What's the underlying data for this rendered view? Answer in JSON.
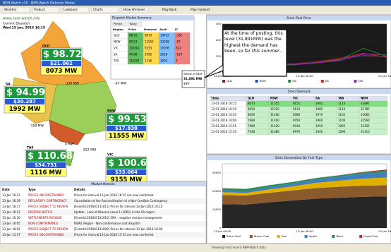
{
  "window": {
    "title": "NEM-Watch v10 - NEM-Watch Platinum Model",
    "menu": [
      "Weather",
      "Product",
      "Lookback",
      "Charts",
      "Show Windows"
    ],
    "buttons": [
      "Play Back",
      "Play Forward"
    ]
  },
  "map": {
    "logo": "www.nem-watch.info",
    "dispatch_label": "Current Dispatch",
    "timestamp": "Wed 13 Jan, 2016 16:15",
    "regions": [
      {
        "name": "QLD",
        "price": "$ 98.72",
        "fcas": "$21.062",
        "demand": "8073 MW"
      },
      {
        "name": "SA",
        "price": "$ 94.99",
        "fcas": "$30.287",
        "demand": "1992 MW"
      },
      {
        "name": "NSW",
        "price": "$ 99.53",
        "fcas": "$17.838",
        "demand": "11555 MW"
      },
      {
        "name": "TAS",
        "price": "$ 110.68",
        "fcas": "$34.731",
        "demand": "1116 MW"
      },
      {
        "name": "VIC",
        "price": "$ 100.64",
        "fcas": "$33.064",
        "demand": "9155 MW"
      }
    ],
    "flows": [
      "-336 MW",
      "-67 MW",
      "-159 MW",
      "822 MW",
      "0 MW"
    ]
  },
  "summary": {
    "title": "Dispatch Market Summary",
    "tabs": [
      "Period",
      "Today"
    ],
    "headers": [
      "Region",
      "Price",
      "Demand",
      "Avail",
      "IC"
    ],
    "rows": [
      [
        "QLD",
        "98.72",
        "8073",
        "10412",
        "-336"
      ],
      [
        "NSW",
        "99.53",
        "11555",
        "13208",
        "-67"
      ],
      [
        "VIC",
        "100.64",
        "9155",
        "10036",
        "822"
      ],
      [
        "SA",
        "94.99",
        "1992",
        "2618",
        "-159"
      ],
      [
        "TAS",
        "110.68",
        "1116",
        "1602",
        "0"
      ]
    ]
  },
  "callout": {
    "text": "At the time of posting, this level (31,891MW) was the highest the demand has been,",
    "emphasis": "so far this summer..."
  },
  "nem": {
    "label": "Whole of NEM",
    "demand": "31,891 MW",
    "price": "$99"
  },
  "price_chart": {
    "type": "line",
    "title": "5min Pool Price",
    "xticks": [
      "13-Jan 00:00",
      "13-Jan 08:00",
      "13-Jan 16:15"
    ],
    "ylim": [
      0,
      300
    ],
    "yticks": [
      0,
      100,
      200,
      300
    ],
    "series": [
      {
        "name": "QLD",
        "color": "#8b1a1a",
        "values": [
          45,
          50,
          60,
          55,
          70,
          90,
          110,
          98.72
        ]
      },
      {
        "name": "NSW",
        "color": "#2050c0",
        "values": [
          40,
          45,
          55,
          52,
          65,
          85,
          105,
          99.53
        ]
      },
      {
        "name": "VIC",
        "color": "#1f8f3a",
        "values": [
          35,
          40,
          50,
          48,
          60,
          80,
          150,
          100.64
        ]
      },
      {
        "name": "SA",
        "color": "#e02020",
        "values": [
          30,
          38,
          45,
          50,
          62,
          85,
          120,
          94.99
        ]
      },
      {
        "name": "TAS",
        "color": "#9c27b0",
        "values": [
          42,
          45,
          48,
          50,
          60,
          75,
          115,
          110.68
        ]
      }
    ]
  },
  "demand_table": {
    "title": "5min Demand",
    "headers": [
      "Time",
      "QLD",
      "NSW",
      "VIC",
      "SA",
      "TAS",
      "NEM"
    ],
    "rows": [
      [
        "13-01-2016 16:15",
        "8073",
        "11555",
        "9155",
        "1992",
        "1116",
        "31891"
      ],
      [
        "13-01-2016 16:10",
        "8050",
        "11520",
        "9120",
        "1985",
        "1110",
        "31785"
      ],
      [
        "13-01-2016 16:05",
        "8020",
        "11490",
        "9080",
        "1970",
        "1105",
        "31665"
      ],
      [
        "13-01-2016 16:00",
        "7990",
        "11460",
        "9050",
        "1960",
        "1100",
        "31560"
      ],
      [
        "13-01-2016 15:55",
        "7960",
        "11420",
        "9010",
        "1950",
        "1095",
        "31435"
      ],
      [
        "13-01-2016 15:50",
        "7930",
        "11380",
        "8970",
        "1940",
        "1090",
        "31310"
      ]
    ]
  },
  "gen_chart": {
    "type": "stacked_area",
    "title": "5min Generation By Fuel Type",
    "xticks": [
      "13-Jan 00:00",
      "13-Jan 08:00",
      "13-Jan 16:15"
    ],
    "ylim": [
      0,
      35000
    ],
    "yticks": [
      0,
      10000,
      20000,
      30000
    ],
    "series": [
      {
        "name": "Black Coal",
        "color": "#262626",
        "values": [
          13000,
          12800,
          14000,
          15000,
          16000,
          16500,
          17000,
          17200
        ]
      },
      {
        "name": "Brown Coal",
        "color": "#8b5a2b",
        "values": [
          5000,
          4900,
          5200,
          5500,
          5800,
          6000,
          6100,
          6100
        ]
      },
      {
        "name": "Gas",
        "color": "#e0b000",
        "values": [
          1500,
          1400,
          1800,
          2200,
          2800,
          3300,
          3800,
          4200
        ]
      },
      {
        "name": "Hydro",
        "color": "#3f7fbf",
        "values": [
          1000,
          900,
          1200,
          1500,
          1800,
          2200,
          2600,
          2900
        ]
      },
      {
        "name": "Wind",
        "color": "#2e8b57",
        "values": [
          1200,
          1300,
          1100,
          900,
          800,
          700,
          800,
          900
        ]
      },
      {
        "name": "Liquid Fuel",
        "color": "#c03030",
        "values": [
          0,
          0,
          0,
          0,
          50,
          100,
          300,
          591
        ]
      }
    ]
  },
  "notices": {
    "title": "Market Notices",
    "headers": [
      "Date",
      "Type",
      "Details"
    ],
    "rows": [
      [
        "13-Jan 16:21",
        "PRICES UNCONSTRAINED",
        "Prices for interval 13-Jan-2016 16:15 are now confirmed"
      ],
      [
        "13-Jan 16:19",
        "RECLASSIFY CONTINGENCY",
        "Cancellation of the Reclassification of a Non-Credible Contingency"
      ],
      [
        "13-Jan 16:17",
        "PRICES SUBJECT TO REVIEW",
        "[EventId:201601131615] Prices for interval 13-Jan-2016 16:15"
      ],
      [
        "13-Jan 16:12",
        "RESERVE NOTICE",
        "Update - Lack of Reserve Level 1 (LOR1) in the SA region"
      ],
      [
        "13-Jan 16:10",
        "SETTLEMENTS RESIDUE",
        "[EventId:201601131610] SRA - negative residue management"
      ],
      [
        "13-Jan 16:05",
        "NON-CONFORMANCE",
        "NSW1 Region - Non-conformance unit dispatch"
      ],
      [
        "13-Jan 16:02",
        "PRICES SUBJECT TO REVIEW",
        "[EventId:201601131600] Prices for interval 13-Jan-2016 16:00"
      ],
      [
        "13-Jan 15:57",
        "PRICES UNCONSTRAINED",
        "Prices for interval 13-Jan-2016 15:55 are now confirmed"
      ]
    ]
  },
  "status": "Showing most recent NEM-Watch data"
}
